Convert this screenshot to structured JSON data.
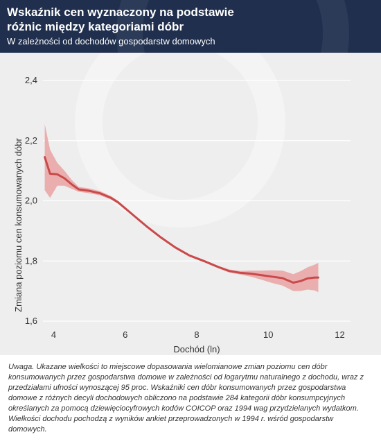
{
  "header": {
    "title": "Wskaźnik cen wyznaczony na podstawie różnic między kategoriami dóbr",
    "subtitle": "W zależności od dochodów gospodarstw domowych"
  },
  "note": "Uwaga. Ukazane wielkości to miejscowe dopasowania wielomianowe zmian poziomu cen dóbr konsumowanych przez gospodarstwa domowe w zależności od logarytmu naturalnego z dochodu, wraz z przedziałami ufności wynoszącej 95 proc. Wskaźniki cen dóbr konsumowanych przez gospodarstwa domowe z różnych decyli dochodowych obliczono na podstawie 284 kategorii dóbr konsumpcyjnych określanych za pomocą dziewięciocyfrowych kodów COICOP oraz 1994 wag przydzielanych wydatkom. Wielkości dochodu pochodzą z wyników ankiet przeprowadzonych w 1994 r. wśród gospodarstw domowych.",
  "colors": {
    "header_bg": "#1f2f4d",
    "plot_bg": "#eeeeee",
    "line": "#c94a4a",
    "band": "#eaa6a6"
  },
  "chart_data": {
    "type": "line",
    "title": "Wskaźnik cen wyznaczony na podstawie różnic między kategoriami dóbr",
    "subtitle": "W zależności od dochodów gospodarstw domowych",
    "xlabel": "Dochód (ln)",
    "ylabel": "Zmiana poziomu cen konsumowanych dóbr",
    "xlim": [
      3.7,
      12.3
    ],
    "ylim": [
      1.6,
      2.4
    ],
    "x_ticks": [
      4,
      6,
      8,
      10,
      12
    ],
    "x_tick_labels": [
      "4",
      "6",
      "8",
      "10",
      "12"
    ],
    "y_ticks": [
      1.6,
      1.8,
      2.0,
      2.2,
      2.4
    ],
    "y_tick_labels": [
      "1,6",
      "1,8",
      "2,0",
      "2,2",
      "2,4"
    ],
    "grid": "horizontal",
    "series": [
      {
        "x": [
          3.75,
          3.9,
          4.1,
          4.3,
          4.5,
          4.7,
          5.0,
          5.3,
          5.6,
          5.8,
          6.0,
          6.3,
          6.6,
          7.0,
          7.4,
          7.8,
          8.2,
          8.6,
          8.9,
          9.2,
          9.5,
          9.8,
          10.1,
          10.4,
          10.7,
          10.9,
          11.1,
          11.3,
          11.4
        ],
        "y": [
          2.145,
          2.09,
          2.088,
          2.075,
          2.055,
          2.038,
          2.033,
          2.025,
          2.01,
          1.995,
          1.975,
          1.945,
          1.915,
          1.878,
          1.845,
          1.818,
          1.8,
          1.78,
          1.767,
          1.761,
          1.758,
          1.753,
          1.748,
          1.743,
          1.728,
          1.733,
          1.742,
          1.745,
          1.745
        ],
        "lower": [
          2.035,
          2.01,
          2.05,
          2.05,
          2.04,
          2.03,
          2.025,
          2.018,
          2.004,
          1.99,
          1.971,
          1.941,
          1.911,
          1.874,
          1.841,
          1.814,
          1.796,
          1.776,
          1.762,
          1.755,
          1.748,
          1.738,
          1.727,
          1.718,
          1.7,
          1.7,
          1.705,
          1.702,
          1.696
        ],
        "upper": [
          2.255,
          2.17,
          2.126,
          2.1,
          2.07,
          2.046,
          2.041,
          2.032,
          2.016,
          2.0,
          1.979,
          1.949,
          1.919,
          1.882,
          1.849,
          1.822,
          1.804,
          1.784,
          1.772,
          1.767,
          1.768,
          1.768,
          1.769,
          1.768,
          1.756,
          1.766,
          1.779,
          1.788,
          1.794
        ]
      }
    ]
  }
}
